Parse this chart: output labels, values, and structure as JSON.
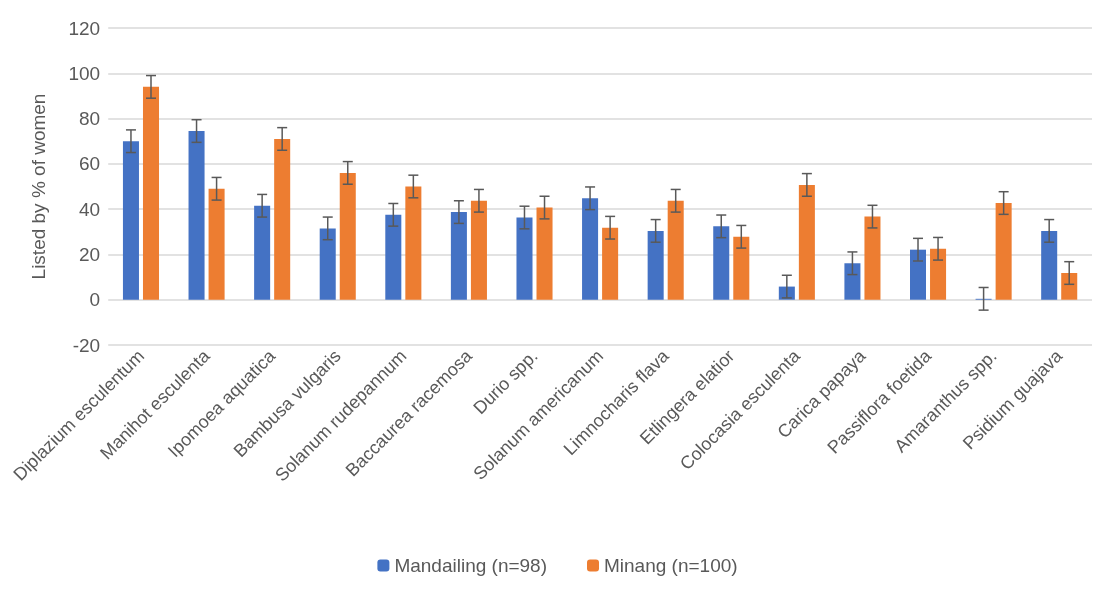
{
  "chart_data": {
    "type": "bar",
    "ylabel": "Listed by % of women",
    "categories": [
      "Diplazium esculentum",
      "Manihot esculenta",
      "Ipomoea aquatica",
      "Bambusa vulgaris",
      "Solanum rudepannum",
      "Baccaurea racemosa",
      "Durio spp.",
      "Solanum americanum",
      "Limnocharis flava",
      "Etlingera elatior",
      "Colocasia esculenta",
      "Carica papaya",
      "Passiflora foetida",
      "Amaranthus spp.",
      "Psidium guajava"
    ],
    "series": [
      {
        "name": "Mandailing (n=98)",
        "color": "#4472c4",
        "values": [
          70,
          74.5,
          41.5,
          31.5,
          37.5,
          38.7,
          36.3,
          44.8,
          30.4,
          32.4,
          5.8,
          16.1,
          22.1,
          0.4,
          30.4
        ],
        "errors": [
          5,
          5,
          5,
          5,
          5,
          5,
          5,
          5,
          5,
          5,
          5,
          5,
          5,
          5,
          5
        ]
      },
      {
        "name": "Minang (n=100)",
        "color": "#ed7d31",
        "values": [
          94,
          49,
          71,
          56,
          50,
          43.7,
          40.7,
          31.8,
          43.7,
          27.8,
          50.7,
          36.7,
          22.5,
          42.7,
          11.8
        ],
        "errors": [
          5,
          5,
          5,
          5,
          5,
          5,
          5,
          5,
          5,
          5,
          5,
          5,
          5,
          5,
          5
        ]
      }
    ],
    "ylim": [
      -20,
      120
    ],
    "yticks": [
      -20,
      0,
      20,
      40,
      60,
      80,
      100,
      120
    ],
    "grid": "y",
    "legend": "bottom"
  }
}
